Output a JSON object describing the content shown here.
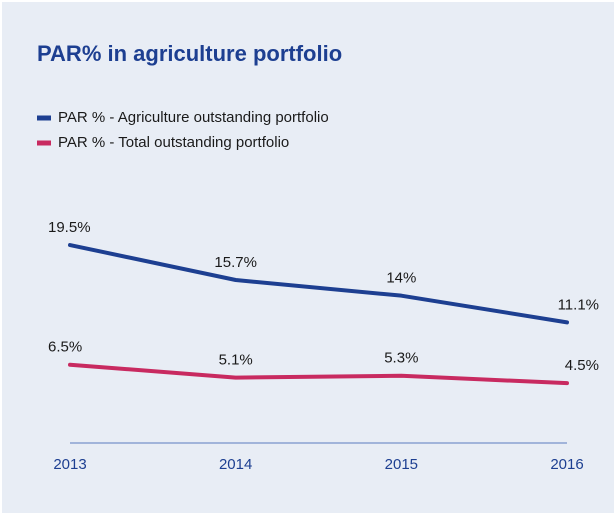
{
  "chart_data": {
    "type": "line",
    "title": "PAR% in agriculture portfolio",
    "categories": [
      "2013",
      "2014",
      "2015",
      "2016"
    ],
    "series": [
      {
        "name": "PAR % - Agriculture outstanding portfolio",
        "color": "#1d3f91",
        "values": [
          19.5,
          15.7,
          14,
          11.1
        ],
        "value_labels": [
          "19.5%",
          "15.7%",
          "14%",
          "11.1%"
        ]
      },
      {
        "name": "PAR % - Total outstanding portfolio",
        "color": "#c82a60",
        "values": [
          6.5,
          5.1,
          5.3,
          4.5
        ],
        "value_labels": [
          "6.5%",
          "5.1%",
          "5.3%",
          "4.5%"
        ]
      }
    ],
    "ylim": [
      -2,
      22
    ],
    "legend": "top-left"
  }
}
